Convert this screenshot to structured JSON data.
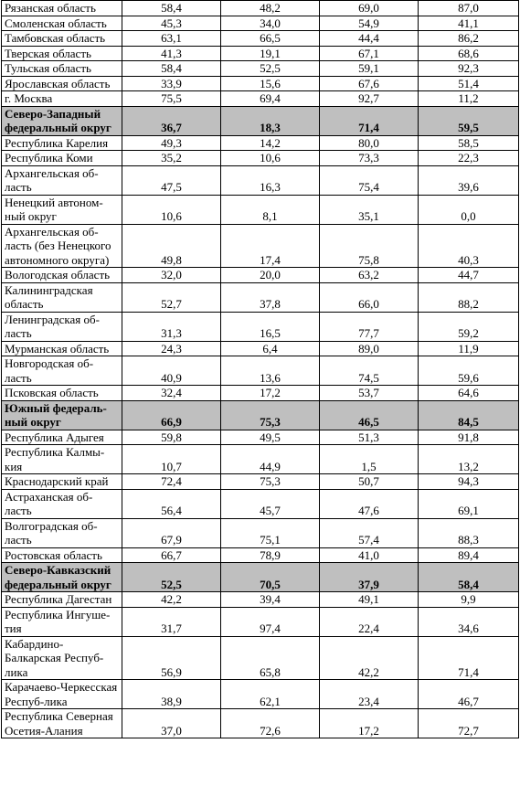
{
  "rows": [
    {
      "name": "Рязанская область",
      "values": [
        "58,4",
        "48,2",
        "69,0",
        "87,0"
      ]
    },
    {
      "name": "Смоленская область",
      "values": [
        "45,3",
        "34,0",
        "54,9",
        "41,1"
      ]
    },
    {
      "name": "Тамбовская область",
      "values": [
        "63,1",
        "66,5",
        "44,4",
        "86,2"
      ]
    },
    {
      "name": "Тверская область",
      "values": [
        "41,3",
        "19,1",
        "67,1",
        "68,6"
      ]
    },
    {
      "name": "Тульская область",
      "values": [
        "58,4",
        "52,5",
        "59,1",
        "92,3"
      ]
    },
    {
      "name": "Ярославская область",
      "values": [
        "33,9",
        "15,6",
        "67,6",
        "51,4"
      ]
    },
    {
      "name": "г. Москва",
      "values": [
        "75,5",
        "69,4",
        "92,7",
        "11,2"
      ]
    },
    {
      "name": "Северо-Западный федеральный округ",
      "values": [
        "36,7",
        "18,3",
        "71,4",
        "59,5"
      ],
      "district": true
    },
    {
      "name": "Республика Карелия",
      "values": [
        "49,3",
        "14,2",
        "80,0",
        "58,5"
      ]
    },
    {
      "name": "Республика Коми",
      "values": [
        "35,2",
        "10,6",
        "73,3",
        "22,3"
      ]
    },
    {
      "name": "Архангельская об-ласть",
      "values": [
        "47,5",
        "16,3",
        "75,4",
        "39,6"
      ]
    },
    {
      "name": "Ненецкий автоном-ный округ",
      "values": [
        "10,6",
        "8,1",
        "35,1",
        "0,0"
      ]
    },
    {
      "name": "Архангельская об-ласть (без Ненецкого автономного округа)",
      "values": [
        "49,8",
        "17,4",
        "75,8",
        "40,3"
      ]
    },
    {
      "name": "Вологодская область",
      "values": [
        "32,0",
        "20,0",
        "63,2",
        "44,7"
      ]
    },
    {
      "name": "Калининградская область",
      "values": [
        "52,7",
        "37,8",
        "66,0",
        "88,2"
      ]
    },
    {
      "name": "Ленинградская об-ласть",
      "values": [
        "31,3",
        "16,5",
        "77,7",
        "59,2"
      ]
    },
    {
      "name": "Мурманская область",
      "values": [
        "24,3",
        "6,4",
        "89,0",
        "11,9"
      ]
    },
    {
      "name": "Новгородская об-ласть",
      "values": [
        "40,9",
        "13,6",
        "74,5",
        "59,6"
      ]
    },
    {
      "name": "Псковская область",
      "values": [
        "32,4",
        "17,2",
        "53,7",
        "64,6"
      ]
    },
    {
      "name": "Южный федераль-ный округ",
      "values": [
        "66,9",
        "75,3",
        "46,5",
        "84,5"
      ],
      "district": true
    },
    {
      "name": "Республика Адыгея",
      "values": [
        "59,8",
        "49,5",
        "51,3",
        "91,8"
      ]
    },
    {
      "name": "Республика Калмы-кия",
      "values": [
        "10,7",
        "44,9",
        "1,5",
        "13,2"
      ]
    },
    {
      "name": "Краснодарский край",
      "values": [
        "72,4",
        "75,3",
        "50,7",
        "94,3"
      ]
    },
    {
      "name": "Астраханская об-ласть",
      "values": [
        "56,4",
        "45,7",
        "47,6",
        "69,1"
      ]
    },
    {
      "name": "Волгоградская об-ласть",
      "values": [
        "67,9",
        "75,1",
        "57,4",
        "88,3"
      ]
    },
    {
      "name": "Ростовская область",
      "values": [
        "66,7",
        "78,9",
        "41,0",
        "89,4"
      ]
    },
    {
      "name": "Северо-Кавказский федеральный округ",
      "values": [
        "52,5",
        "70,5",
        "37,9",
        "58,4"
      ],
      "district": true
    },
    {
      "name": "Республика Дагестан",
      "values": [
        "42,2",
        "39,4",
        "49,1",
        "9,9"
      ]
    },
    {
      "name": "Республика Ингуше-тия",
      "values": [
        "31,7",
        "97,4",
        "22,4",
        "34,6"
      ]
    },
    {
      "name": "Кабардино-Балкарская Респуб-лика",
      "values": [
        "56,9",
        "65,8",
        "42,2",
        "71,4"
      ]
    },
    {
      "name": "Карачаево-Черкесская Респуб-лика",
      "values": [
        "38,9",
        "62,1",
        "23,4",
        "46,7"
      ]
    },
    {
      "name": "Республика Северная Осетия-Алания",
      "values": [
        "37,0",
        "72,6",
        "17,2",
        "72,7"
      ]
    }
  ]
}
